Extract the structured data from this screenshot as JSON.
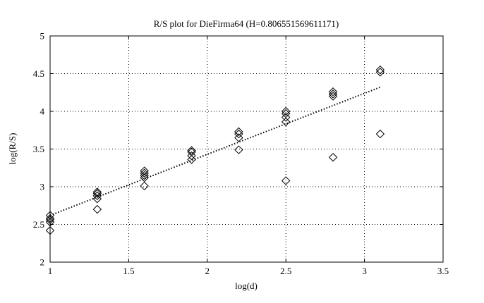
{
  "chart_data": {
    "type": "scatter",
    "title": "R/S plot for DieFirma64 (H=0.806551569611171)",
    "xlabel": "log(d)",
    "ylabel": "log(R/S)",
    "xlim": [
      1,
      3.5
    ],
    "ylim": [
      2,
      5
    ],
    "xticks": [
      1,
      1.5,
      2,
      2.5,
      3,
      3.5
    ],
    "xtick_labels": [
      "1",
      "1.5",
      "2",
      "2.5",
      "3",
      "3.5"
    ],
    "yticks": [
      2,
      2.5,
      3,
      3.5,
      4,
      4.5,
      5
    ],
    "ytick_labels": [
      "2",
      "2.5",
      "3",
      "3.5",
      "4",
      "4.5",
      "5"
    ],
    "grid": true,
    "marker": "diamond",
    "colors": {
      "marker": "#000000",
      "fit_line": "#000000",
      "grid": "#000000"
    },
    "points": [
      {
        "x": 1.0,
        "y": 2.62
      },
      {
        "x": 1.0,
        "y": 2.58
      },
      {
        "x": 1.0,
        "y": 2.56
      },
      {
        "x": 1.0,
        "y": 2.53
      },
      {
        "x": 1.0,
        "y": 2.42
      },
      {
        "x": 1.3,
        "y": 2.93
      },
      {
        "x": 1.3,
        "y": 2.91
      },
      {
        "x": 1.3,
        "y": 2.88
      },
      {
        "x": 1.3,
        "y": 2.84
      },
      {
        "x": 1.3,
        "y": 2.7
      },
      {
        "x": 1.6,
        "y": 3.21
      },
      {
        "x": 1.6,
        "y": 3.18
      },
      {
        "x": 1.6,
        "y": 3.15
      },
      {
        "x": 1.6,
        "y": 3.12
      },
      {
        "x": 1.6,
        "y": 3.01
      },
      {
        "x": 1.9,
        "y": 3.48
      },
      {
        "x": 1.9,
        "y": 3.46
      },
      {
        "x": 1.9,
        "y": 3.41
      },
      {
        "x": 1.9,
        "y": 3.36
      },
      {
        "x": 2.2,
        "y": 3.73
      },
      {
        "x": 2.2,
        "y": 3.7
      },
      {
        "x": 2.2,
        "y": 3.65
      },
      {
        "x": 2.2,
        "y": 3.49
      },
      {
        "x": 2.5,
        "y": 4.0
      },
      {
        "x": 2.5,
        "y": 3.97
      },
      {
        "x": 2.5,
        "y": 3.92
      },
      {
        "x": 2.5,
        "y": 3.86
      },
      {
        "x": 2.5,
        "y": 3.08
      },
      {
        "x": 2.8,
        "y": 4.26
      },
      {
        "x": 2.8,
        "y": 4.23
      },
      {
        "x": 2.8,
        "y": 4.2
      },
      {
        "x": 2.8,
        "y": 3.39
      },
      {
        "x": 3.1,
        "y": 4.55
      },
      {
        "x": 3.1,
        "y": 4.52
      },
      {
        "x": 3.1,
        "y": 3.7
      }
    ],
    "fit_line": {
      "x": [
        1.0,
        3.1
      ],
      "y": [
        2.62,
        4.32
      ],
      "style": "dotted"
    }
  }
}
